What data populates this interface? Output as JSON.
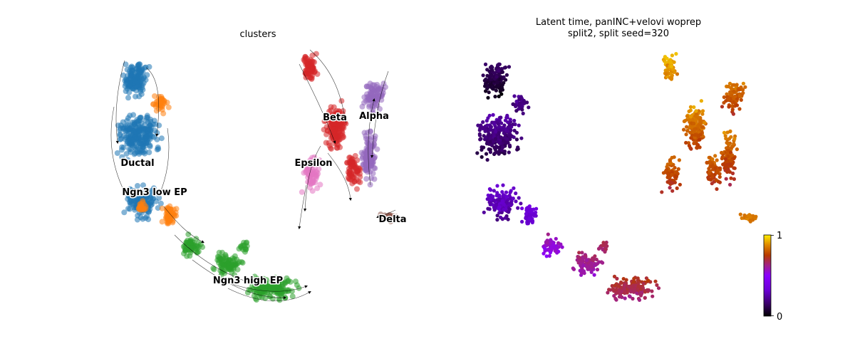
{
  "chart_data": [
    {
      "type": "scatter",
      "panel": "embedding",
      "title": "clusters",
      "xlabel": "",
      "ylabel": "",
      "axes": "off",
      "grid": false,
      "legend": "on data",
      "overlay": "velocity streamlines",
      "clusters": [
        {
          "name": "Ductal",
          "color": "#1f77b4"
        },
        {
          "name": "Ngn3 low EP",
          "color": "#ff7f0e"
        },
        {
          "name": "Ngn3 high EP",
          "color": "#2ca02c"
        },
        {
          "name": "Beta",
          "color": "#d62728"
        },
        {
          "name": "Alpha",
          "color": "#9467bd"
        },
        {
          "name": "Delta",
          "color": "#8c564b"
        },
        {
          "name": "Epsilon",
          "color": "#e377c2"
        }
      ]
    },
    {
      "type": "scatter",
      "panel": "embedding",
      "title_lines": [
        "Latent time, panINC+velovi woprep",
        "split2, split seed=320"
      ],
      "xlabel": "",
      "ylabel": "",
      "axes": "off",
      "grid": false,
      "colormap": "gnuplot",
      "colorbar": {
        "min": 0,
        "max": 1,
        "ticks": [
          "1",
          "0"
        ]
      }
    }
  ]
}
